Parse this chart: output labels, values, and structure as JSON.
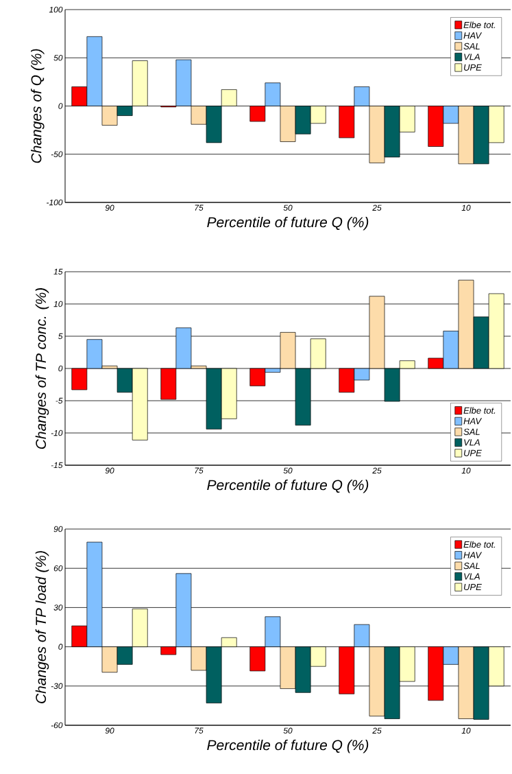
{
  "chart_data": [
    {
      "type": "bar",
      "xlabel": "Percentile of future Q (%)",
      "ylabel": "Changes  of Q (%)",
      "categories": [
        "90",
        "75",
        "50",
        "25",
        "10"
      ],
      "ylim": [
        -100,
        100
      ],
      "yticks": [
        -100,
        -50,
        0,
        50,
        100
      ],
      "grid": "y",
      "legend": "top right",
      "series": [
        {
          "name": "Elbe tot.",
          "color": "#ff0000",
          "values": [
            20,
            -1,
            -16,
            -33,
            -42
          ]
        },
        {
          "name": "HAV",
          "color": "#80bfff",
          "values": [
            72,
            48,
            24,
            20,
            -18
          ]
        },
        {
          "name": "SAL",
          "color": "#fddcaa",
          "values": [
            -20,
            -19,
            -37,
            -59,
            -60
          ]
        },
        {
          "name": "VLA",
          "color": "#006060",
          "values": [
            -10,
            -38,
            -29,
            -53,
            -60
          ]
        },
        {
          "name": "UPE",
          "color": "#ffffc0",
          "values": [
            47,
            17,
            -18,
            -27,
            -38
          ]
        }
      ]
    },
    {
      "type": "bar",
      "xlabel": "Percentile of future Q (%)",
      "ylabel": "Changes of TP conc.  (%)",
      "categories": [
        "90",
        "75",
        "50",
        "25",
        "10"
      ],
      "ylim": [
        -15,
        15
      ],
      "yticks": [
        -15,
        -10,
        -5,
        0,
        5,
        10,
        15
      ],
      "grid": "y",
      "legend": "bottom right",
      "series": [
        {
          "name": "Elbe tot.",
          "color": "#ff0000",
          "values": [
            -3.3,
            -4.8,
            -2.7,
            -3.7,
            1.6
          ]
        },
        {
          "name": "HAV",
          "color": "#80bfff",
          "values": [
            4.5,
            6.3,
            -0.6,
            -1.8,
            5.8
          ]
        },
        {
          "name": "SAL",
          "color": "#fddcaa",
          "values": [
            0.4,
            0.4,
            5.6,
            11.2,
            13.7
          ]
        },
        {
          "name": "VLA",
          "color": "#006060",
          "values": [
            -3.7,
            -9.4,
            -8.8,
            -5.1,
            8.0
          ]
        },
        {
          "name": "UPE",
          "color": "#ffffc0",
          "values": [
            -11.1,
            -7.8,
            4.6,
            1.2,
            11.6
          ]
        }
      ]
    },
    {
      "type": "bar",
      "xlabel": "Percentile of future Q (%)",
      "ylabel": "Changes of TP load (%)",
      "categories": [
        "90",
        "75",
        "50",
        "25",
        "10"
      ],
      "ylim": [
        -60,
        90
      ],
      "yticks": [
        -60,
        -30,
        0,
        30,
        60,
        90
      ],
      "grid": "y",
      "legend": "top right",
      "series": [
        {
          "name": "Elbe tot.",
          "color": "#ff0000",
          "values": [
            16,
            -6,
            -18.5,
            -36,
            -41
          ]
        },
        {
          "name": "HAV",
          "color": "#80bfff",
          "values": [
            80,
            56,
            23,
            17,
            -13.5
          ]
        },
        {
          "name": "SAL",
          "color": "#fddcaa",
          "values": [
            -19.5,
            -18,
            -32,
            -53,
            -55
          ]
        },
        {
          "name": "VLA",
          "color": "#006060",
          "values": [
            -13.5,
            -43,
            -35,
            -55,
            -55.5
          ]
        },
        {
          "name": "UPE",
          "color": "#ffffc0",
          "values": [
            29,
            7,
            -15,
            -26.5,
            -30
          ]
        }
      ]
    }
  ]
}
